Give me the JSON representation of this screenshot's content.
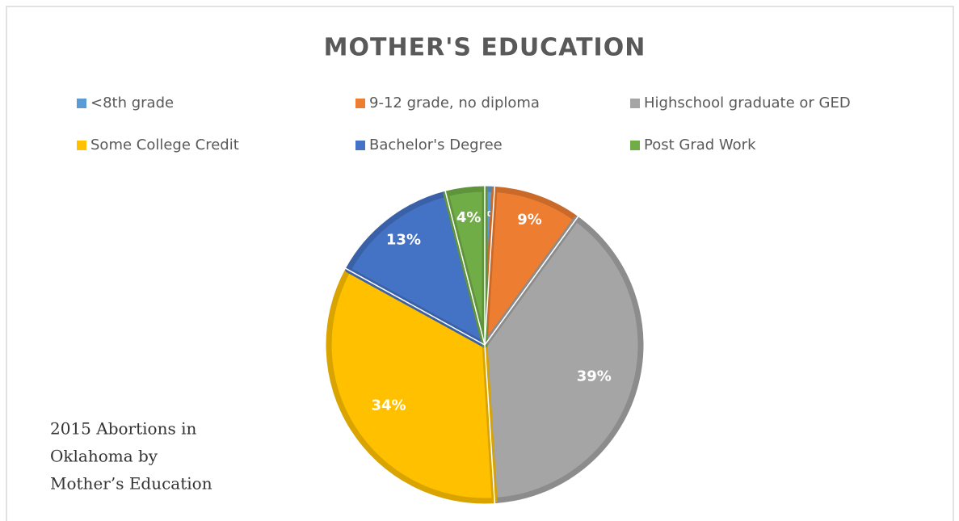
{
  "chart_data": {
    "type": "pie",
    "title": "MOTHER'S EDUCATION",
    "categories": [
      "<8th grade",
      "9-12 grade, no diploma",
      "Highschool graduate or GED",
      "Some College Credit",
      "Bachelor's Degree",
      "Post Grad Work"
    ],
    "values": [
      1,
      9,
      39,
      34,
      13,
      4
    ],
    "value_labels": [
      "1%",
      "9%",
      "39%",
      "34%",
      "13%",
      "4%"
    ],
    "colors": [
      "#5b9bd5",
      "#ed7d31",
      "#a5a5a5",
      "#ffc000",
      "#4472c4",
      "#70ad47"
    ],
    "legend": "top",
    "annotation": [
      "2015 Abortions in",
      "Oklahoma by",
      "Mother’s Education"
    ]
  }
}
